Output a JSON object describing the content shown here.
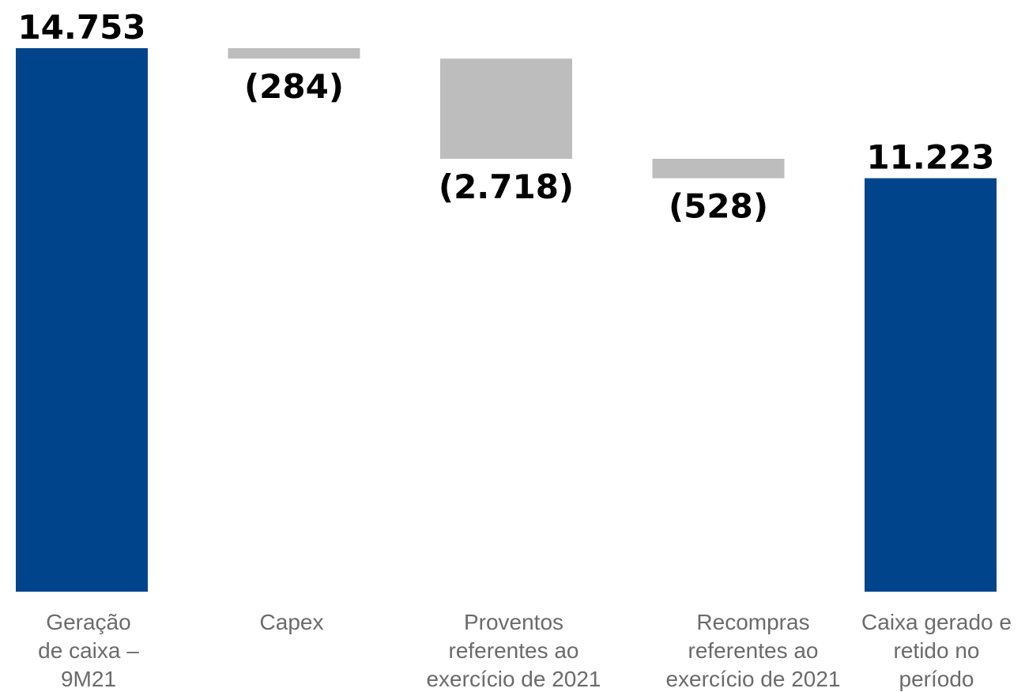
{
  "chart_data": {
    "type": "bar",
    "subtype": "waterfall",
    "title": "",
    "xlabel": "",
    "ylabel": "",
    "ylim": [
      0,
      14753
    ],
    "grid": false,
    "legend": "none",
    "categories": [
      [
        "Geração",
        "de caixa –",
        "9M21"
      ],
      [
        "Capex"
      ],
      [
        "Proventos",
        "referentes ao",
        "exercício de 2021"
      ],
      [
        "Recompras",
        "referentes ao",
        "exercício de 2021"
      ],
      [
        "Caixa gerado e",
        "retido no",
        "período"
      ]
    ],
    "values": [
      14753,
      -284,
      -2718,
      -528,
      11223
    ],
    "measures": [
      "absolute",
      "relative",
      "relative",
      "relative",
      "total"
    ],
    "data_labels": [
      "14.753",
      "(284)",
      "(2.718)",
      "(528)",
      "11.223"
    ],
    "colors": {
      "total": "#00458c",
      "decrease": "#bdbdbd"
    }
  }
}
